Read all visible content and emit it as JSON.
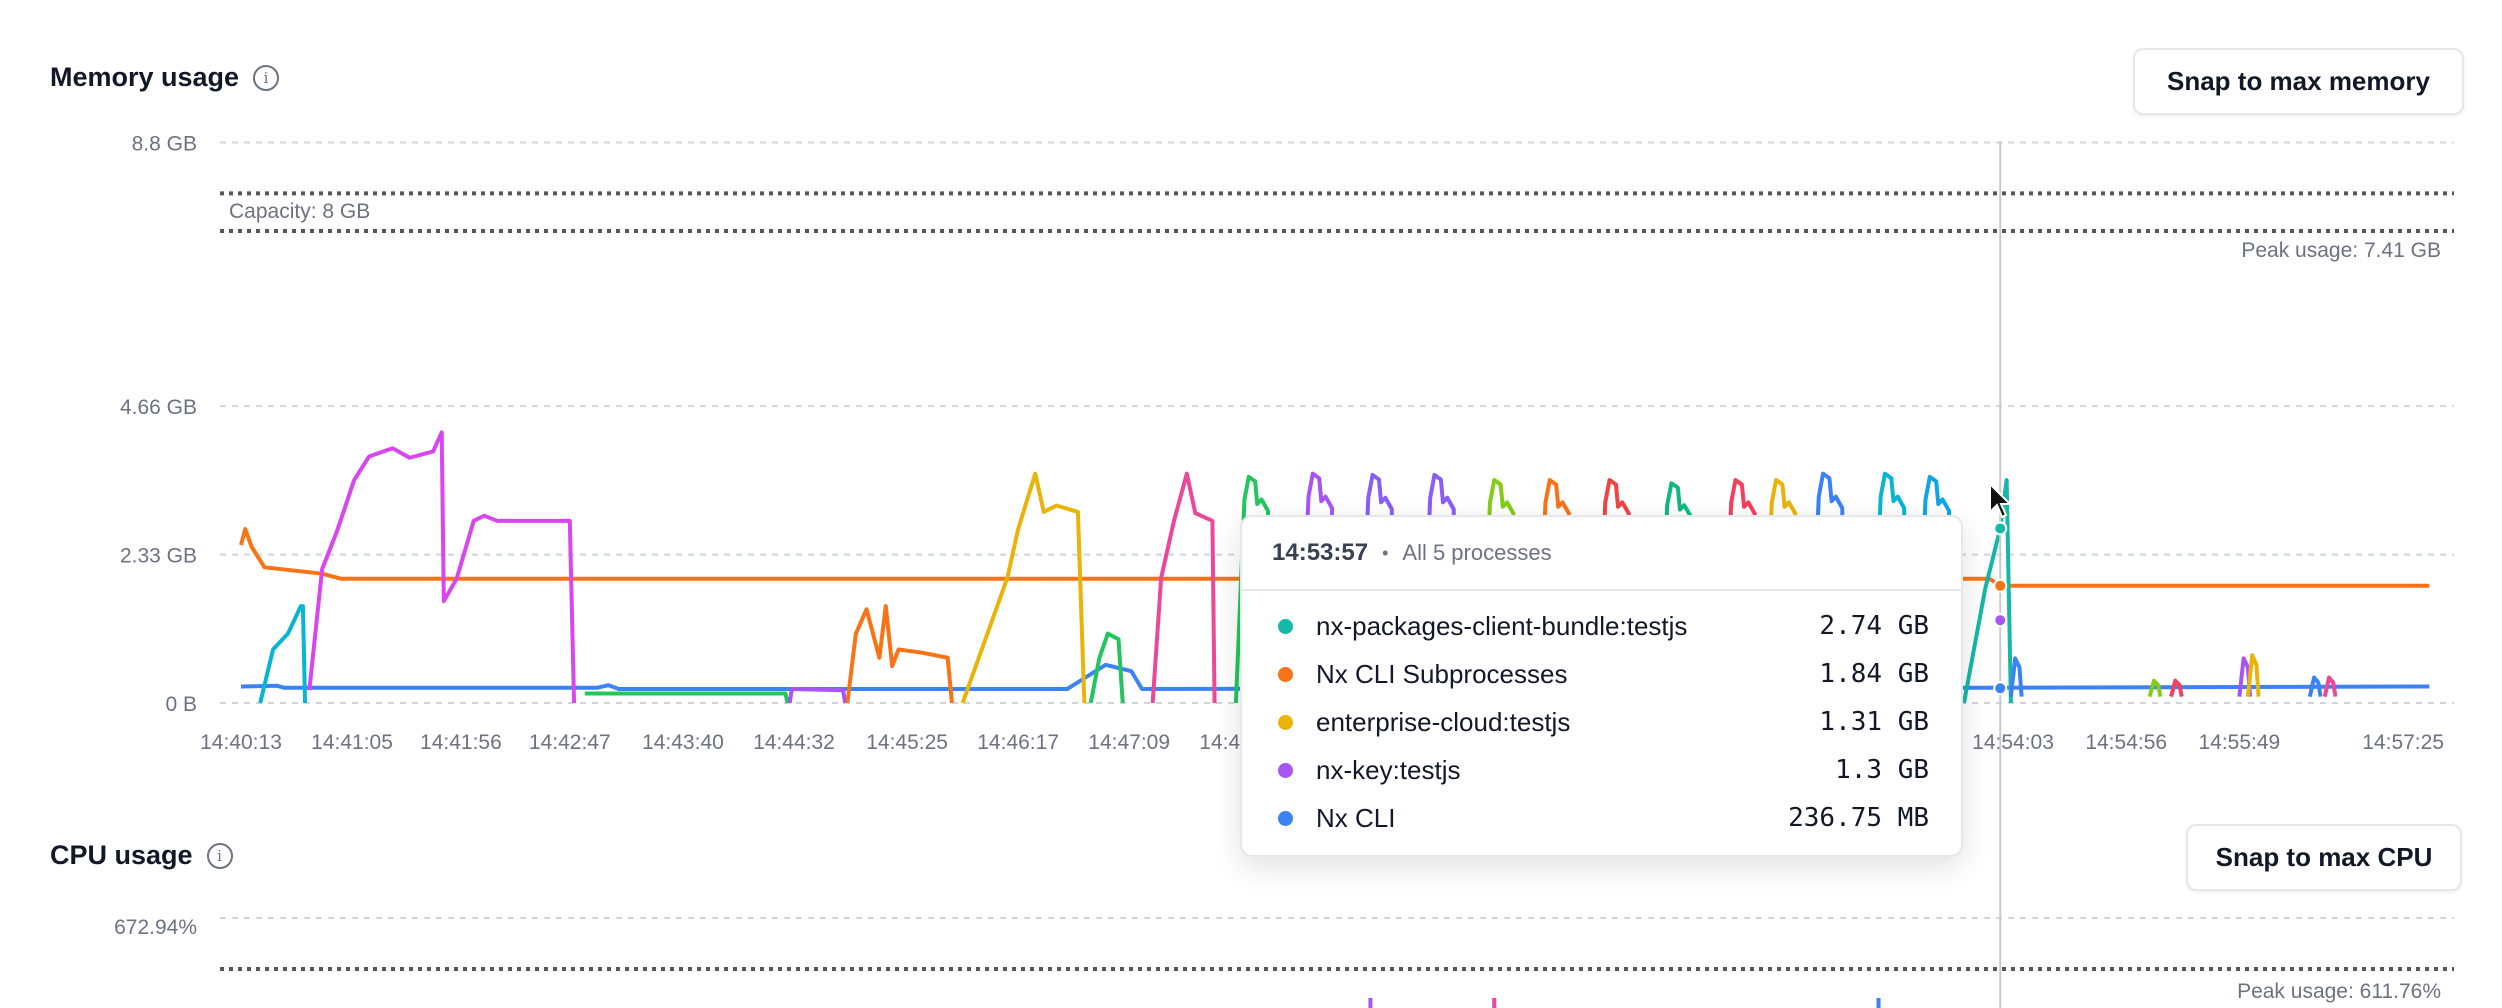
{
  "memory": {
    "title": "Memory usage",
    "info_icon": "info-circle-icon",
    "snap_button": "Snap to max memory",
    "capacity_label": "Capacity: 8 GB",
    "peak_label": "Peak usage: 7.41 GB"
  },
  "cpu": {
    "title": "CPU usage",
    "info_icon": "info-circle-icon",
    "snap_button": "Snap to max CPU",
    "y_tick": "672.94%",
    "peak_label": "Peak usage: 611.76%"
  },
  "tooltip": {
    "time": "14:53:57",
    "separator": "•",
    "subtitle": "All 5 processes",
    "rows": [
      {
        "label": "nx-packages-client-bundle:testjs",
        "value": "2.74 GB",
        "color": "#14b8a6"
      },
      {
        "label": "Nx CLI Subprocesses",
        "value": "1.84 GB",
        "color": "#f97316"
      },
      {
        "label": "enterprise-cloud:testjs",
        "value": "1.31 GB",
        "color": "#eab308"
      },
      {
        "label": "nx-key:testjs",
        "value": "1.3 GB",
        "color": "#a855f7"
      },
      {
        "label": "Nx CLI",
        "value": "236.75 MB",
        "color": "#3b82f6"
      }
    ]
  },
  "chart_data": [
    {
      "type": "line",
      "title": "Memory usage",
      "y_ticks": [
        "0 B",
        "2.33 GB",
        "4.66 GB",
        "8.8 GB"
      ],
      "y_tick_values": [
        0,
        2.33,
        4.66,
        8.8
      ],
      "ylim": [
        0,
        8.8
      ],
      "y_unit": "GB",
      "capacity": 8,
      "peak": 7.41,
      "x_ticks": [
        "14:40:13",
        "14:41:05",
        "14:41:56",
        "14:42:47",
        "14:43:40",
        "14:44:32",
        "14:45:25",
        "14:46:17",
        "14:47:09",
        "14:48:01",
        "14:54:03",
        "14:54:56",
        "14:55:49",
        "14:57:25"
      ],
      "xlim": [
        "14:40:13",
        "14:57:25"
      ],
      "hover_time": "14:53:57",
      "grid": true,
      "series": [
        {
          "color": "#3b82f6",
          "points": [
            [
              "14:40:13",
              0.26
            ],
            [
              "14:40:30",
              0.27
            ],
            [
              "14:40:33",
              0.24
            ],
            [
              "14:43:00",
              0.24
            ],
            [
              "14:43:05",
              0.28
            ],
            [
              "14:43:10",
              0.22
            ],
            [
              "14:46:40",
              0.22
            ],
            [
              "14:46:58",
              0.6
            ],
            [
              "14:47:10",
              0.5
            ],
            [
              "14:47:15",
              0.22
            ],
            [
              "14:53:50",
              0.24
            ],
            [
              "14:57:18",
              0.26
            ]
          ]
        },
        {
          "color": "#f97316",
          "points": [
            [
              "14:40:13",
              2.48
            ],
            [
              "14:40:15",
              2.73
            ],
            [
              "14:40:18",
              2.45
            ],
            [
              "14:40:24",
              2.13
            ],
            [
              "14:40:51",
              2.03
            ],
            [
              "14:41:00",
              1.95
            ],
            [
              "14:53:52",
              1.95
            ],
            [
              "14:53:57",
              1.84
            ],
            [
              "14:57:18",
              1.84
            ]
          ]
        },
        {
          "color": "#06b6d4",
          "points": [
            [
              "14:40:22",
              0
            ],
            [
              "14:40:28",
              0.84
            ],
            [
              "14:40:35",
              1.09
            ],
            [
              "14:40:41",
              1.52
            ],
            [
              "14:40:42",
              1.52
            ],
            [
              "14:40:43",
              0
            ]
          ]
        },
        {
          "color": "#d946ef",
          "points": [
            [
              "14:40:45",
              0.2
            ],
            [
              "14:40:51",
              2.1
            ],
            [
              "14:40:58",
              2.7
            ],
            [
              "14:41:06",
              3.5
            ],
            [
              "14:41:13",
              3.87
            ],
            [
              "14:41:24",
              4.0
            ],
            [
              "14:41:32",
              3.85
            ],
            [
              "14:41:43",
              3.95
            ],
            [
              "14:41:47",
              4.25
            ],
            [
              "14:41:48",
              1.6
            ],
            [
              "14:41:54",
              1.95
            ],
            [
              "14:42:02",
              2.86
            ],
            [
              "14:42:07",
              2.94
            ],
            [
              "14:42:13",
              2.86
            ],
            [
              "14:42:47",
              2.86
            ],
            [
              "14:42:49",
              0
            ]
          ]
        },
        {
          "color": "#22c55e",
          "points": [
            [
              "14:42:54",
              0.15
            ],
            [
              "14:44:28",
              0.15
            ],
            [
              "14:44:29",
              0
            ]
          ]
        },
        {
          "color": "#a855f7",
          "points": [
            [
              "14:44:30",
              0
            ],
            [
              "14:44:31",
              0.22
            ],
            [
              "14:44:55",
              0.2
            ],
            [
              "14:44:56",
              0
            ]
          ]
        },
        {
          "color": "#f97316",
          "points": [
            [
              "14:44:57",
              0
            ],
            [
              "14:45:01",
              1.09
            ],
            [
              "14:45:06",
              1.47
            ],
            [
              "14:45:12",
              0.71
            ],
            [
              "14:45:15",
              1.52
            ],
            [
              "14:45:18",
              0.58
            ],
            [
              "14:45:21",
              0.84
            ],
            [
              "14:45:32",
              0.79
            ],
            [
              "14:45:44",
              0.71
            ],
            [
              "14:45:46",
              0
            ]
          ]
        },
        {
          "color": "#eab308",
          "points": [
            [
              "14:45:51",
              0
            ],
            [
              "14:46:12",
              1.97
            ],
            [
              "14:46:17",
              2.73
            ],
            [
              "14:46:25",
              3.6
            ],
            [
              "14:46:29",
              3.0
            ],
            [
              "14:46:35",
              3.1
            ],
            [
              "14:46:45",
              3.0
            ],
            [
              "14:46:48",
              0
            ]
          ]
        },
        {
          "color": "#22c55e",
          "points": [
            [
              "14:46:51",
              0
            ],
            [
              "14:46:55",
              0.7
            ],
            [
              "14:46:59",
              1.09
            ],
            [
              "14:47:04",
              1.0
            ],
            [
              "14:47:06",
              0
            ]
          ]
        },
        {
          "color": "#ec4899",
          "points": [
            [
              "14:47:20",
              0
            ],
            [
              "14:47:24",
              1.97
            ],
            [
              "14:47:30",
              2.86
            ],
            [
              "14:47:36",
              3.6
            ],
            [
              "14:47:40",
              2.98
            ],
            [
              "14:47:48",
              2.86
            ],
            [
              "14:47:49",
              0
            ]
          ]
        },
        {
          "color": "#14b8a6",
          "points": [
            [
              "14:53:40",
              0
            ],
            [
              "14:53:50",
              1.8
            ],
            [
              "14:53:57",
              2.74
            ],
            [
              "14:54:00",
              3.5
            ],
            [
              "14:54:02",
              0
            ]
          ]
        }
      ],
      "spikes": [
        {
          "time": "14:48:06",
          "peak": 3.55,
          "color": "#22c55e"
        },
        {
          "time": "14:48:36",
          "peak": 3.6,
          "color": "#a855f7"
        },
        {
          "time": "14:49:04",
          "peak": 3.58,
          "color": "#8b5cf6"
        },
        {
          "time": "14:49:33",
          "peak": 3.58,
          "color": "#8b5cf6"
        },
        {
          "time": "14:50:01",
          "peak": 3.5,
          "color": "#84cc16"
        },
        {
          "time": "14:50:27",
          "peak": 3.5,
          "color": "#f97316"
        },
        {
          "time": "14:50:55",
          "peak": 3.5,
          "color": "#ef4444"
        },
        {
          "time": "14:51:24",
          "peak": 3.45,
          "color": "#10b981"
        },
        {
          "time": "14:51:54",
          "peak": 3.5,
          "color": "#f43f5e"
        },
        {
          "time": "14:52:13",
          "peak": 3.5,
          "color": "#eab308"
        },
        {
          "time": "14:52:35",
          "peak": 3.6,
          "color": "#3b82f6"
        },
        {
          "time": "14:53:04",
          "peak": 3.6,
          "color": "#06b6d4"
        },
        {
          "time": "14:53:25",
          "peak": 3.55,
          "color": "#0ea5e9"
        },
        {
          "time": "14:54:05",
          "peak": 0.7,
          "color": "#3b82f6"
        },
        {
          "time": "14:55:10",
          "peak": 0.35,
          "color": "#84cc16"
        },
        {
          "time": "14:55:20",
          "peak": 0.35,
          "color": "#f43f5e"
        },
        {
          "time": "14:55:52",
          "peak": 0.7,
          "color": "#a855f7"
        },
        {
          "time": "14:55:56",
          "peak": 0.75,
          "color": "#eab308"
        },
        {
          "time": "14:56:25",
          "peak": 0.4,
          "color": "#3b82f6"
        },
        {
          "time": "14:56:32",
          "peak": 0.4,
          "color": "#ec4899"
        }
      ]
    },
    {
      "type": "line",
      "title": "CPU usage",
      "y_ticks": [
        "672.94%"
      ],
      "y_tick_values": [
        672.94
      ],
      "y_unit": "%",
      "peak": 611.76,
      "hover_time": "14:53:57",
      "grid": true,
      "visible_spikes": [
        {
          "time": "14:49:02",
          "color": "#a855f7"
        },
        {
          "time": "14:50:00",
          "color": "#ec4899"
        },
        {
          "time": "14:53:00",
          "color": "#3b82f6"
        }
      ]
    }
  ]
}
